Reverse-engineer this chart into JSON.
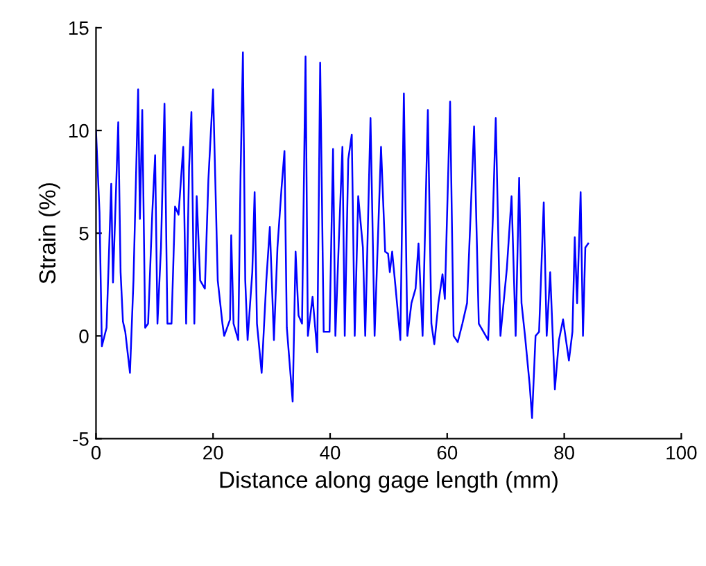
{
  "chart_data": {
    "type": "line",
    "xlabel": "Distance along gage length (mm)",
    "ylabel": "Strain (%)",
    "xlim": [
      0,
      100
    ],
    "ylim": [
      -5,
      15
    ],
    "xticks": [
      0,
      20,
      40,
      60,
      80,
      100
    ],
    "yticks": [
      -5,
      0,
      5,
      10,
      15
    ],
    "grid": false,
    "legend": false,
    "marker": "none",
    "line_style": "solid",
    "series": [
      {
        "color": "#0000ff",
        "x": [
          0,
          0.6,
          1.0,
          1.8,
          2.6,
          2.9,
          3.8,
          4.2,
          4.6,
          5.0,
          5.8,
          6.4,
          7.2,
          7.5,
          7.9,
          8.4,
          8.9,
          9.6,
          10.1,
          10.5,
          11.1,
          11.7,
          12.2,
          12.9,
          13.5,
          14.1,
          14.9,
          15.4,
          15.9,
          16.3,
          16.8,
          17.2,
          17.8,
          18.6,
          19.2,
          20.0,
          20.8,
          21.6,
          21.9,
          22.9,
          23.1,
          23.5,
          24.3,
          24.7,
          25.1,
          25.5,
          25.9,
          26.7,
          27.1,
          27.5,
          28.3,
          29.1,
          29.7,
          30.4,
          31.0,
          31.7,
          32.2,
          32.6,
          33.6,
          34.1,
          34.6,
          35.2,
          35.8,
          36.2,
          37.0,
          37.8,
          38.3,
          38.9,
          39.9,
          40.5,
          40.9,
          41.5,
          42.1,
          42.5,
          43.1,
          43.7,
          44.2,
          44.8,
          45.6,
          46.0,
          46.9,
          47.6,
          48.7,
          49.4,
          49.9,
          50.2,
          50.6,
          51.2,
          52.0,
          52.6,
          53.2,
          53.9,
          54.6,
          55.1,
          55.8,
          56.7,
          57.3,
          57.8,
          58.5,
          59.2,
          59.6,
          60.5,
          61.1,
          61.8,
          62.6,
          63.4,
          64.6,
          65.4,
          66.2,
          67.0,
          67.8,
          68.3,
          69.1,
          70.2,
          71.0,
          71.7,
          72.3,
          72.7,
          73.3,
          74.1,
          74.5,
          75.1,
          75.7,
          76.5,
          77.0,
          77.6,
          78.4,
          79.1,
          79.8,
          80.8,
          81.4,
          81.8,
          82.2,
          82.8,
          83.2,
          83.6,
          84.1
        ],
        "values": [
          10,
          6,
          -0.5,
          0.4,
          7.4,
          2.6,
          10.4,
          3.1,
          0.7,
          0.2,
          -1.8,
          2.7,
          12.0,
          5.7,
          11.0,
          0.4,
          0.6,
          5.9,
          8.8,
          0.6,
          4.3,
          11.3,
          0.6,
          0.6,
          6.3,
          5.9,
          9.2,
          0.6,
          8.2,
          10.9,
          0.6,
          6.8,
          2.7,
          2.3,
          7.6,
          12.0,
          2.7,
          0.6,
          0,
          0.8,
          4.9,
          0.6,
          -0.2,
          7.9,
          13.8,
          2.7,
          -0.2,
          3.1,
          7.0,
          0.6,
          -1.8,
          2.7,
          5.3,
          -0.2,
          4.3,
          7.2,
          9.0,
          0.4,
          -3.2,
          4.1,
          1.0,
          0.6,
          13.6,
          0,
          1.9,
          -0.8,
          13.3,
          0.2,
          0.2,
          9.1,
          0,
          4.7,
          9.2,
          0,
          8.6,
          9.8,
          0,
          6.8,
          4.3,
          0,
          10.6,
          0,
          9.2,
          4.1,
          4.0,
          3.1,
          4.1,
          2.3,
          -0.2,
          11.8,
          0,
          1.6,
          2.3,
          4.5,
          0,
          11.0,
          0.6,
          -0.4,
          1.6,
          3.0,
          1.8,
          11.4,
          0,
          -0.3,
          0.6,
          1.6,
          10.2,
          0.6,
          0.2,
          -0.2,
          5.7,
          10.6,
          0,
          3.3,
          6.8,
          0,
          7.7,
          1.6,
          0,
          -2.4,
          -4.0,
          0,
          0.2,
          6.5,
          0,
          3.1,
          -2.6,
          -0.2,
          0.8,
          -1.2,
          0.2,
          4.8,
          1.6,
          7.0,
          0,
          4.3,
          4.5
        ]
      }
    ]
  }
}
